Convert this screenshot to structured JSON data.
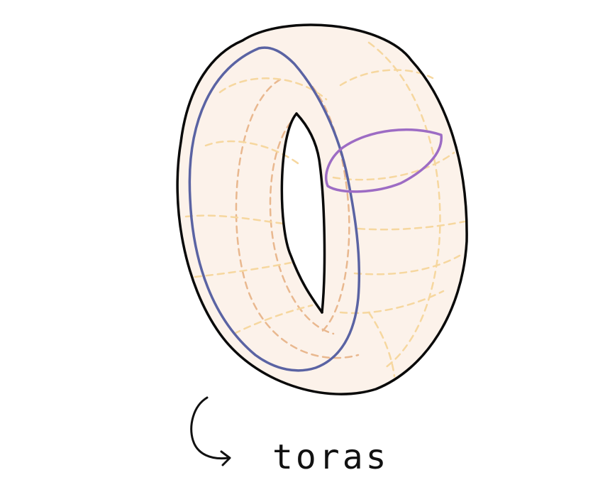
{
  "diagram": {
    "caption": "toras"
  },
  "colors": {
    "torus_fill": "#fcf2ea",
    "outline": "#0a0a0a",
    "meridian_dash": "#e9b88f",
    "latitude_dash": "#f6d79f",
    "longitude_loop": "#5a63a3",
    "meridian_loop": "#9d6cc4"
  },
  "icons": {
    "caption_arrow": "curved-arrow-icon"
  }
}
